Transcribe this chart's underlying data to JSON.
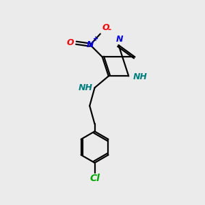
{
  "background_color": "#ebebeb",
  "bond_color": "#000000",
  "atom_colors": {
    "N": "#0000ff",
    "O": "#ff0000",
    "Cl": "#00aa00",
    "NH": "#008080"
  },
  "figsize": [
    3.0,
    3.0
  ],
  "dpi": 100
}
